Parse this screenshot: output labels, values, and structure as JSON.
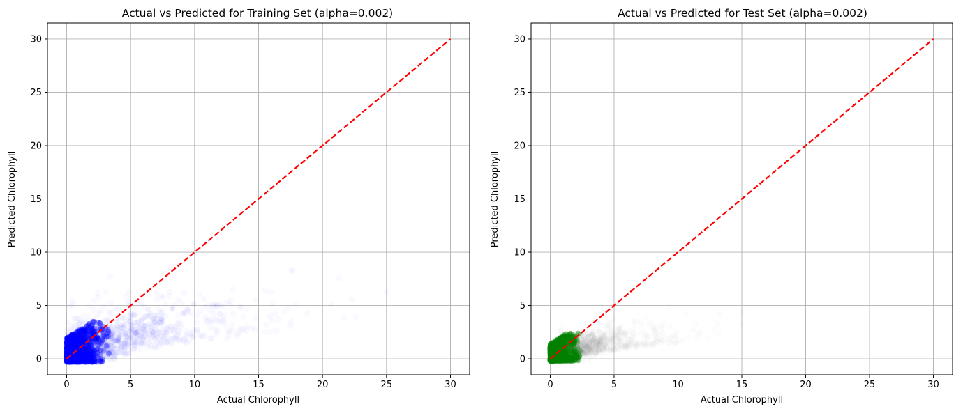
{
  "chart_data": [
    {
      "type": "scatter",
      "title": "Actual vs Predicted for Training Set (alpha=0.002)",
      "xlabel": "Actual Chlorophyll",
      "ylabel": "Predicted Chlorophyll",
      "xlim": [
        -1.5,
        31.5
      ],
      "ylim": [
        -1.5,
        31.5
      ],
      "xticks": [
        "0",
        "5",
        "10",
        "15",
        "20",
        "25",
        "30"
      ],
      "yticks": [
        "0",
        "5",
        "10",
        "15",
        "20",
        "25",
        "30"
      ],
      "grid": true,
      "point_color": "#0000ff",
      "reference_line": {
        "x": [
          0,
          30
        ],
        "y": [
          0,
          30
        ],
        "color": "#ff0000",
        "style": "dashed"
      },
      "dense_cluster": {
        "x": [
          0,
          3.5
        ],
        "y": [
          -0.3,
          3.5
        ]
      },
      "sparse_spread": {
        "x": [
          0,
          25
        ],
        "y": [
          0,
          11
        ]
      }
    },
    {
      "type": "scatter",
      "title": "Actual vs Predicted for Test Set (alpha=0.002)",
      "xlabel": "Actual Chlorophyll",
      "ylabel": "Predicted Chlorophyll",
      "xlim": [
        -1.5,
        31.5
      ],
      "ylim": [
        -1.5,
        31.5
      ],
      "xticks": [
        "0",
        "5",
        "10",
        "15",
        "20",
        "25",
        "30"
      ],
      "yticks": [
        "0",
        "5",
        "10",
        "15",
        "20",
        "25",
        "30"
      ],
      "grid": true,
      "point_color": "#008000",
      "halo_color": "#808080",
      "reference_line": {
        "x": [
          0,
          30
        ],
        "y": [
          0,
          30
        ],
        "color": "#ff0000",
        "style": "dashed"
      },
      "dense_cluster": {
        "x": [
          0,
          2.5
        ],
        "y": [
          -0.2,
          2.5
        ]
      },
      "sparse_spread": {
        "x": [
          0,
          15
        ],
        "y": [
          0,
          5
        ]
      }
    }
  ]
}
